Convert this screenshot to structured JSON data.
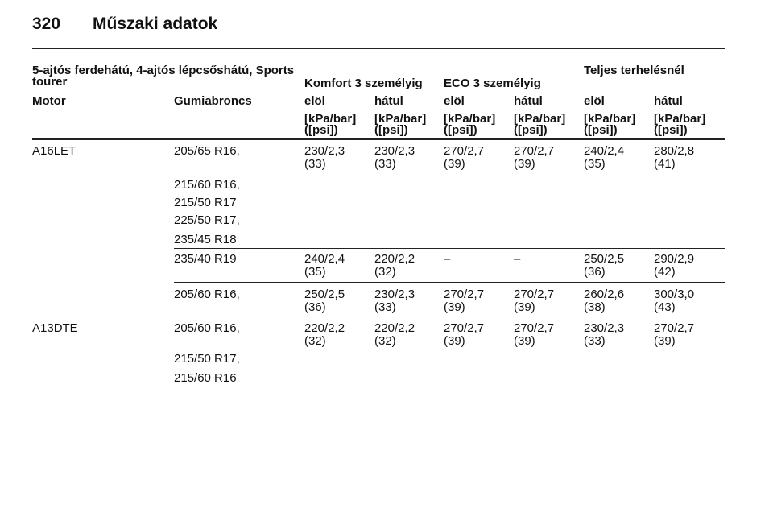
{
  "header": {
    "page_number": "320",
    "title": "Műszaki adatok"
  },
  "table": {
    "group_headers": {
      "model": [
        "5-ajtós ferdehátú, 4-ajtós lépcsőshátú, Sports",
        "tourer"
      ],
      "comfort": "Komfort 3 személyig",
      "eco": "ECO 3 személyig",
      "full_load": "Teljes terhelésnél"
    },
    "columns": [
      "Motor",
      "Gumiabroncs",
      "elöl",
      "hátul",
      "elöl",
      "hátul",
      "elöl",
      "hátul"
    ],
    "units": [
      [
        "[kPa/bar]",
        "([psi])"
      ],
      [
        "[kPa/bar]",
        "([psi])"
      ],
      [
        "[kPa/bar]",
        "([psi])"
      ],
      [
        "[kPa/bar]",
        "([psi])"
      ],
      [
        "[kPa/bar]",
        "([psi])"
      ],
      [
        "[kPa/bar]",
        "([psi])"
      ]
    ],
    "rows": [
      {
        "motor": "A16LET",
        "tires": [
          "205/65 R16,",
          "215/60 R16,",
          "215/50 R17",
          "225/50 R17,",
          "235/45 R18"
        ],
        "values": [
          [
            "230/2,3",
            "(33)"
          ],
          [
            "230/2,3",
            "(33)"
          ],
          [
            "270/2,7",
            "(39)"
          ],
          [
            "270/2,7",
            "(39)"
          ],
          [
            "240/2,4",
            "(35)"
          ],
          [
            "280/2,8",
            "(41)"
          ]
        ]
      },
      {
        "tires": [
          "235/40 R19"
        ],
        "values": [
          [
            "240/2,4",
            "(35)"
          ],
          [
            "220/2,2",
            "(32)"
          ],
          [
            "–"
          ],
          [
            "–"
          ],
          [
            "250/2,5",
            "(36)"
          ],
          [
            "290/2,9",
            "(42)"
          ]
        ]
      },
      {
        "tires": [
          "205/60 R16,"
        ],
        "values": [
          [
            "250/2,5",
            "(36)"
          ],
          [
            "230/2,3",
            "(33)"
          ],
          [
            "270/2,7",
            "(39)"
          ],
          [
            "270/2,7",
            "(39)"
          ],
          [
            "260/2,6",
            "(38)"
          ],
          [
            "300/3,0",
            "(43)"
          ]
        ]
      },
      {
        "motor": "A13DTE",
        "tires": [
          "205/60 R16,",
          "215/50 R17,",
          "215/60 R16"
        ],
        "values": [
          [
            "220/2,2",
            "(32)"
          ],
          [
            "220/2,2",
            "(32)"
          ],
          [
            "270/2,7",
            "(39)"
          ],
          [
            "270/2,7",
            "(39)"
          ],
          [
            "230/2,3",
            "(33)"
          ],
          [
            "270/2,7",
            "(39)"
          ]
        ]
      }
    ]
  }
}
